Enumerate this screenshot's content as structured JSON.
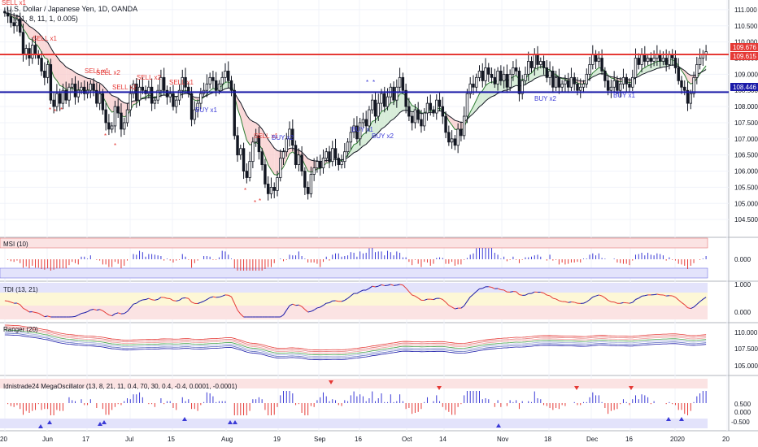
{
  "chart_data": {
    "type": "candlestick",
    "title": "U.S. Dollar / Japanese Yen, 1D, OANDA",
    "overlay_label": "(21, 8, 11, 1, 0.005)",
    "x_ticks": [
      "20",
      "Jun",
      "17",
      "Jul",
      "15",
      "Aug",
      "19",
      "Sep",
      "16",
      "Oct",
      "14",
      "Nov",
      "18",
      "Dec",
      "16",
      "2020",
      "20"
    ],
    "price_axis": {
      "ticks": [
        "111.000",
        "110.500",
        "110.000",
        "109.500",
        "109.000",
        "108.500",
        "108.000",
        "107.500",
        "107.000",
        "106.500",
        "106.000",
        "105.500",
        "105.000",
        "104.500"
      ],
      "range": [
        104.0,
        111.3
      ]
    },
    "horizontal_lines": [
      {
        "value": 109.615,
        "label": "109.615",
        "color": "#e53935"
      },
      {
        "value": 108.446,
        "label": "108.446",
        "color": "#1a1aa8"
      }
    ],
    "last_price_label": "109.676",
    "signals": [
      "SELL x1",
      "SELL x1",
      "SELL x1",
      "SELL x2",
      "SELL x2",
      "SELL x2",
      "SELL x1",
      "SELL x1",
      "BUY x2",
      "BUY x1",
      "BUY x1",
      "BUY x2",
      "BUY x2",
      "BUY x1"
    ],
    "candles_close": [
      110.9,
      110.8,
      110.6,
      110.5,
      110.7,
      110.3,
      109.6,
      109.8,
      109.5,
      109.9,
      109.6,
      109.5,
      109.1,
      108.9,
      109.3,
      108.2,
      108.0,
      108.4,
      108.1,
      108.5,
      108.2,
      108.6,
      108.7,
      108.3,
      108.5,
      108.6,
      108.4,
      108.5,
      108.7,
      108.5,
      108.1,
      108.4,
      107.9,
      107.5,
      107.3,
      107.4,
      108.0,
      107.8,
      107.3,
      107.5,
      107.9,
      108.4,
      108.7,
      108.2,
      108.6,
      108.5,
      108.4,
      108.6,
      108.1,
      108.2,
      108.5,
      108.9,
      108.5,
      108.3,
      108.4,
      108.0,
      108.2,
      108.5,
      108.9,
      108.6,
      108.4,
      107.6,
      107.9,
      108.1,
      108.4,
      108.5,
      108.7,
      108.9,
      108.8,
      108.5,
      108.7,
      108.9,
      109.1,
      108.8,
      108.5,
      107.1,
      106.5,
      106.7,
      106.0,
      105.8,
      106.3,
      106.9,
      107.1,
      106.6,
      106.2,
      105.6,
      105.3,
      105.5,
      105.4,
      105.8,
      106.4,
      106.6,
      107.0,
      107.3,
      106.8,
      106.2,
      106.5,
      106.0,
      105.5,
      105.3,
      105.9,
      106.1,
      106.3,
      106.1,
      106.4,
      106.6,
      106.3,
      106.7,
      106.4,
      106.2,
      106.3,
      106.6,
      106.9,
      107.2,
      107.4,
      107.0,
      107.5,
      107.6,
      107.4,
      107.9,
      108.2,
      107.7,
      108.1,
      108.4,
      108.0,
      108.3,
      108.6,
      108.2,
      108.6,
      108.9,
      108.5,
      108.0,
      107.7,
      107.5,
      107.9,
      107.6,
      107.4,
      107.8,
      108.1,
      107.9,
      107.8,
      108.2,
      108.0,
      107.7,
      107.2,
      106.9,
      107.0,
      106.8,
      107.3,
      107.1,
      107.7,
      108.4,
      108.7,
      108.6,
      108.9,
      109.1,
      108.8,
      109.2,
      109.0,
      108.9,
      108.7,
      109.1,
      108.8,
      109.0,
      108.6,
      109.0,
      109.2,
      109.1,
      108.4,
      108.8,
      109.0,
      109.4,
      109.2,
      109.6,
      109.3,
      109.4,
      109.2,
      108.9,
      109.1,
      108.6,
      108.9,
      108.6,
      108.7,
      108.8,
      108.6,
      108.9,
      108.7,
      108.5,
      108.6,
      108.7,
      109.0,
      109.3,
      109.6,
      109.4,
      109.5,
      109.1,
      108.8,
      108.5,
      108.6,
      108.8,
      108.5,
      108.7,
      108.9,
      108.7,
      108.6,
      108.9,
      109.5,
      109.3,
      109.6,
      109.4,
      109.5,
      109.4,
      109.5,
      109.6,
      109.4,
      109.5,
      109.3,
      109.6,
      109.5,
      109.2,
      108.8,
      108.6,
      108.5,
      108.1,
      108.4,
      108.9,
      109.3,
      109.5,
      109.6,
      109.7
    ]
  },
  "panes": {
    "msi": {
      "label": "MSI (10)",
      "value_label": "0.000"
    },
    "tdi": {
      "label": "TDI (13, 21)",
      "ticks": [
        "1.000",
        "0.000"
      ]
    },
    "ranger": {
      "label": "Ranger (20)",
      "ticks": [
        "110.000",
        "107.500",
        "105.000"
      ]
    },
    "mega": {
      "label": "Idnistrade24 MegaOscillator (13, 8, 21, 11, 0.4, 70, 30, 0.4, -0.4, 0.0001, -0.0001)",
      "ticks": [
        "0.500",
        "0.000",
        "-0.500"
      ]
    }
  },
  "colors": {
    "up": "#ffffff",
    "down": "#131722",
    "red_line": "#e53935",
    "blue_line": "#1a1aa8",
    "sell": "#e53935",
    "buy": "#3a3ad6"
  }
}
